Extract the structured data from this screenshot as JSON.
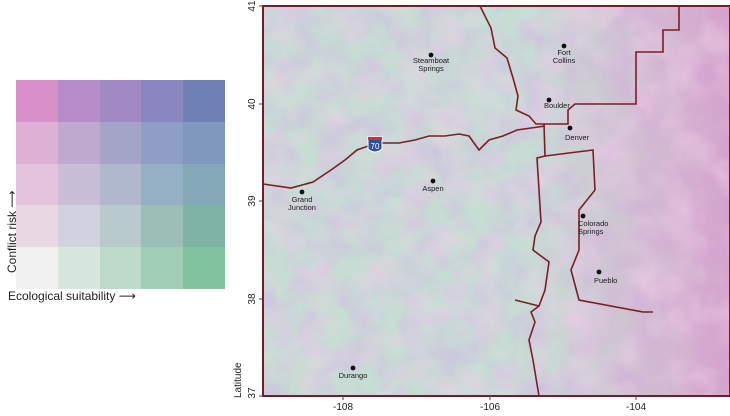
{
  "legend": {
    "y_label": "Conflict risk",
    "x_label": "Ecological suitability",
    "grid_colors": [
      [
        "#d890c8",
        "#b78cc8",
        "#a18ac4",
        "#8887bf",
        "#6f80b6"
      ],
      [
        "#ddb0d6",
        "#bea9cf",
        "#a4a4c8",
        "#8e9ec4",
        "#7f98bb"
      ],
      [
        "#e3c4dc",
        "#c8bed8",
        "#b0b8cd",
        "#95b0c4",
        "#84a9b6"
      ],
      [
        "#e9d7e4",
        "#d0d2df",
        "#b8cacb",
        "#9bbfb6",
        "#7fb3a3"
      ],
      [
        "#f1f1f1",
        "#d7e7dd",
        "#bddbca",
        "#a0cfb5",
        "#80c29c"
      ]
    ]
  },
  "map": {
    "y_axis_label": "Latitude",
    "y_ticks": [
      "41",
      "40",
      "39",
      "38",
      "37"
    ],
    "x_ticks": [
      "-108",
      "-106",
      "-104"
    ],
    "highway_label": "70",
    "border_color": "#7a1f25",
    "cities": [
      {
        "name": "Steamboat\nSprings"
      },
      {
        "name": "Fort\nCollins"
      },
      {
        "name": "Boulder"
      },
      {
        "name": "Denver"
      },
      {
        "name": "Grand\nJunction"
      },
      {
        "name": "Aspen"
      },
      {
        "name": "Colorado\nSprings"
      },
      {
        "name": "Pueblo"
      },
      {
        "name": "Durango"
      }
    ]
  }
}
